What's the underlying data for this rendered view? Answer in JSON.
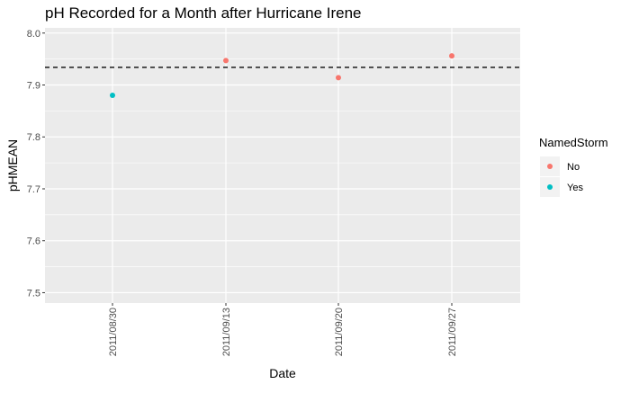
{
  "chart_data": {
    "type": "scatter",
    "title": "pH Recorded for a Month after Hurricane Irene",
    "xlabel": "Date",
    "ylabel": "pHMEAN",
    "x_ticks": [
      "2011/08/30",
      "2011/09/13",
      "2011/09/20",
      "2011/09/27"
    ],
    "y_ticks": [
      "7.5",
      "7.6",
      "7.7",
      "7.8",
      "7.9",
      "8.0"
    ],
    "ylim": [
      7.48,
      8.01
    ],
    "points": [
      {
        "x": "2011/08/30",
        "y": 7.88,
        "NamedStorm": "Yes"
      },
      {
        "x": "2011/09/13",
        "y": 7.947,
        "NamedStorm": "No"
      },
      {
        "x": "2011/09/20",
        "y": 7.914,
        "NamedStorm": "No"
      },
      {
        "x": "2011/09/27",
        "y": 7.956,
        "NamedStorm": "No"
      }
    ],
    "reference_line": {
      "y": 7.934,
      "style": "dashed"
    },
    "legend": {
      "title": "NamedStorm",
      "position": "right",
      "entries": [
        {
          "label": "No",
          "color": "#F8766D"
        },
        {
          "label": "Yes",
          "color": "#00BFC4"
        }
      ]
    },
    "grid": true,
    "panel_background": "#EBEBEB",
    "grid_color": "#FFFFFF"
  }
}
